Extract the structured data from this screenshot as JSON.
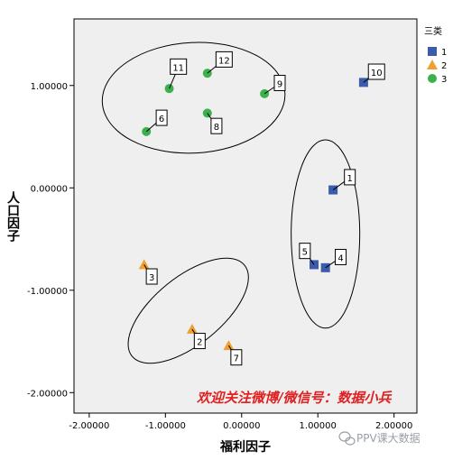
{
  "chart_data": {
    "type": "scatter",
    "xlabel": "福利因子",
    "ylabel": "人口因子",
    "xlim": [
      -2.2,
      2.3
    ],
    "ylim": [
      -2.2,
      1.65
    ],
    "x_ticks": [
      -2,
      -1,
      0,
      1,
      2
    ],
    "x_tick_labels": [
      "-2.00000",
      "-1.00000",
      "0.00000",
      "1.00000",
      "2.00000"
    ],
    "y_ticks": [
      1,
      0,
      -1,
      -2
    ],
    "y_tick_labels": [
      "1.00000",
      "0.00000",
      "-1.00000",
      "-2.00000"
    ],
    "grid": false,
    "legend": {
      "title": "三类",
      "position": "right",
      "entries": [
        {
          "label": "1",
          "marker": "square",
          "color": "#3b5bab"
        },
        {
          "label": "2",
          "marker": "triangle",
          "color": "#f0a030"
        },
        {
          "label": "3",
          "marker": "circle",
          "color": "#3cb04c"
        }
      ]
    },
    "series": [
      {
        "name": "1",
        "marker": "square",
        "color": "#3b5bab",
        "points": [
          {
            "x": 1.2,
            "y": -0.02,
            "label": "1"
          },
          {
            "x": 1.1,
            "y": -0.78,
            "label": "4"
          },
          {
            "x": 0.95,
            "y": -0.75,
            "label": "5"
          },
          {
            "x": 1.6,
            "y": 1.03,
            "label": "10"
          }
        ]
      },
      {
        "name": "2",
        "marker": "triangle",
        "color": "#f0a030",
        "points": [
          {
            "x": -1.28,
            "y": -0.75,
            "label": "3"
          },
          {
            "x": -0.65,
            "y": -1.38,
            "label": "2"
          },
          {
            "x": -0.17,
            "y": -1.54,
            "label": "7"
          }
        ]
      },
      {
        "name": "3",
        "marker": "circle",
        "color": "#3cb04c",
        "points": [
          {
            "x": -1.25,
            "y": 0.55,
            "label": "6"
          },
          {
            "x": -0.95,
            "y": 0.97,
            "label": "11"
          },
          {
            "x": -0.45,
            "y": 0.73,
            "label": "8"
          },
          {
            "x": -0.45,
            "y": 1.12,
            "label": "12"
          },
          {
            "x": 0.3,
            "y": 0.92,
            "label": "9"
          }
        ]
      }
    ],
    "ellipses": [
      {
        "cx": -0.63,
        "cy": 0.88,
        "rx": 1.2,
        "ry": 0.54,
        "angle": -3
      },
      {
        "cx": 1.1,
        "cy": -0.45,
        "rx": 0.45,
        "ry": 0.92,
        "angle": 0
      },
      {
        "cx": -0.7,
        "cy": -1.2,
        "rx": 0.95,
        "ry": 0.33,
        "angle": -39
      }
    ],
    "label_offsets": {
      "1": [
        0.22,
        0.12
      ],
      "4": [
        0.2,
        0.1
      ],
      "5": [
        -0.12,
        0.13
      ],
      "10": [
        0.17,
        0.1
      ],
      "3": [
        0.1,
        -0.12
      ],
      "2": [
        0.1,
        -0.12
      ],
      "7": [
        0.1,
        -0.12
      ],
      "6": [
        0.2,
        0.13
      ],
      "11": [
        0.12,
        0.21
      ],
      "8": [
        0.12,
        -0.13
      ],
      "12": [
        0.22,
        0.13
      ],
      "9": [
        0.2,
        0.1
      ]
    }
  },
  "watermark_text": "欢迎关注微博/微信号：数据小兵",
  "credit_text": "PPV课大数据"
}
